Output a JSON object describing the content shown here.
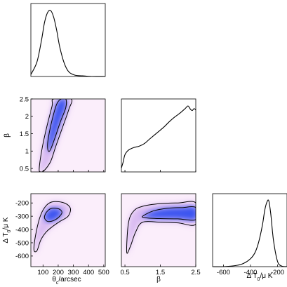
{
  "chart_data": {
    "type": "corner",
    "description_source": "triangle plot of marginalised posteriors",
    "parameters": [
      {
        "key": "theta",
        "label_main": "θ",
        "label_sub": "c",
        "label_rest": "/arcsec",
        "range": [
          20,
          510
        ],
        "ticks": [
          100,
          200,
          300,
          400,
          500
        ],
        "tick_labels": [
          "100",
          "200",
          "300",
          "400",
          "500"
        ]
      },
      {
        "key": "beta",
        "label_main": "β",
        "label_sub": "",
        "label_rest": "",
        "range": [
          0.4,
          2.5
        ],
        "ticks": [
          0.5,
          1,
          1.5,
          2,
          2.5
        ],
        "tick_labels": [
          "0.5",
          "1",
          "1.5",
          "2",
          "2.5"
        ],
        "x_ticks": [
          0.5,
          1.5,
          2.5
        ],
        "x_tick_labels": [
          "0.5",
          "1.5",
          "2.5"
        ]
      },
      {
        "key": "dt",
        "label_main": "Δ T",
        "label_sub": "0",
        "label_rest": "/μ K",
        "range": [
          -680,
          -130
        ],
        "ticks": [
          -200,
          -300,
          -400,
          -500,
          -600
        ],
        "tick_labels": [
          "-200",
          "-300",
          "-400",
          "-500",
          "-600"
        ],
        "x_ticks": [
          -600,
          -400,
          -200
        ],
        "x_tick_labels": [
          "-600",
          "-400",
          "-200"
        ]
      }
    ],
    "marginals": {
      "theta": {
        "x": [
          20,
          60,
          90,
          110,
          130,
          150,
          170,
          190,
          210,
          240,
          270,
          310,
          360,
          420,
          510
        ],
        "y": [
          0.03,
          0.22,
          0.55,
          0.82,
          0.97,
          1.0,
          0.9,
          0.7,
          0.45,
          0.2,
          0.07,
          0.02,
          0.01,
          0.0,
          0.0
        ]
      },
      "beta": {
        "x": [
          0.4,
          0.45,
          0.5,
          0.6,
          0.75,
          0.9,
          1.05,
          1.2,
          1.4,
          1.6,
          1.75,
          1.9,
          2.05,
          2.2,
          2.28,
          2.35,
          2.4,
          2.45,
          2.5
        ],
        "y": [
          0.06,
          0.15,
          0.26,
          0.33,
          0.37,
          0.39,
          0.43,
          0.5,
          0.59,
          0.68,
          0.76,
          0.83,
          0.89,
          0.96,
          1.0,
          0.95,
          0.93,
          0.96,
          0.94
        ]
      },
      "dt": {
        "x": [
          -680,
          -600,
          -500,
          -450,
          -400,
          -370,
          -350,
          -330,
          -310,
          -295,
          -280,
          -265,
          -250,
          -230,
          -200,
          -170,
          -130
        ],
        "y": [
          0.0,
          0.0,
          0.02,
          0.05,
          0.12,
          0.2,
          0.3,
          0.45,
          0.65,
          0.85,
          0.97,
          1.0,
          0.8,
          0.4,
          0.08,
          0.01,
          0.0
        ]
      }
    },
    "joint": [
      {
        "x": "theta",
        "y": "beta",
        "inner": [
          [
            140,
            1.5
          ],
          [
            160,
            1.9
          ],
          [
            190,
            2.35
          ],
          [
            220,
            2.5
          ],
          [
            250,
            2.5
          ],
          [
            250,
            2.25
          ],
          [
            215,
            1.85
          ],
          [
            180,
            1.4
          ],
          [
            150,
            1.05
          ],
          [
            135,
            1.0
          ],
          [
            130,
            1.2
          ]
        ],
        "outer": [
          [
            75,
            0.5
          ],
          [
            95,
            1.1
          ],
          [
            125,
            1.7
          ],
          [
            160,
            2.3
          ],
          [
            170,
            2.5
          ],
          [
            285,
            2.5
          ],
          [
            270,
            2.2
          ],
          [
            230,
            1.7
          ],
          [
            185,
            1.15
          ],
          [
            150,
            0.7
          ],
          [
            110,
            0.45
          ],
          [
            85,
            0.4
          ]
        ]
      },
      {
        "x": "theta",
        "y": "dt",
        "inner": [
          [
            110,
            -300
          ],
          [
            130,
            -260
          ],
          [
            160,
            -240
          ],
          [
            205,
            -245
          ],
          [
            225,
            -270
          ],
          [
            210,
            -300
          ],
          [
            175,
            -330
          ],
          [
            135,
            -340
          ],
          [
            115,
            -325
          ]
        ],
        "outer": [
          [
            40,
            -550
          ],
          [
            55,
            -420
          ],
          [
            85,
            -290
          ],
          [
            125,
            -215
          ],
          [
            170,
            -190
          ],
          [
            240,
            -200
          ],
          [
            280,
            -240
          ],
          [
            265,
            -300
          ],
          [
            210,
            -340
          ],
          [
            160,
            -380
          ],
          [
            120,
            -420
          ],
          [
            85,
            -480
          ],
          [
            60,
            -560
          ]
        ]
      },
      {
        "x": "beta",
        "y": "dt",
        "inner": [
          [
            1.0,
            -300
          ],
          [
            1.3,
            -260
          ],
          [
            1.7,
            -240
          ],
          [
            2.1,
            -235
          ],
          [
            2.5,
            -235
          ],
          [
            2.5,
            -325
          ],
          [
            2.0,
            -320
          ],
          [
            1.5,
            -318
          ],
          [
            1.2,
            -315
          ],
          [
            1.05,
            -310
          ]
        ],
        "outer": [
          [
            0.55,
            -570
          ],
          [
            0.6,
            -350
          ],
          [
            0.75,
            -260
          ],
          [
            1.0,
            -225
          ],
          [
            1.5,
            -205
          ],
          [
            2.0,
            -200
          ],
          [
            2.5,
            -200
          ],
          [
            2.5,
            -360
          ],
          [
            2.0,
            -350
          ],
          [
            1.5,
            -345
          ],
          [
            1.0,
            -345
          ],
          [
            0.8,
            -420
          ],
          [
            0.65,
            -530
          ]
        ]
      }
    ],
    "colors": {
      "inner_fill": "#3250f0",
      "outer_fill": "#b27fe6",
      "background": "#fbeefb",
      "line": "#000000"
    }
  }
}
